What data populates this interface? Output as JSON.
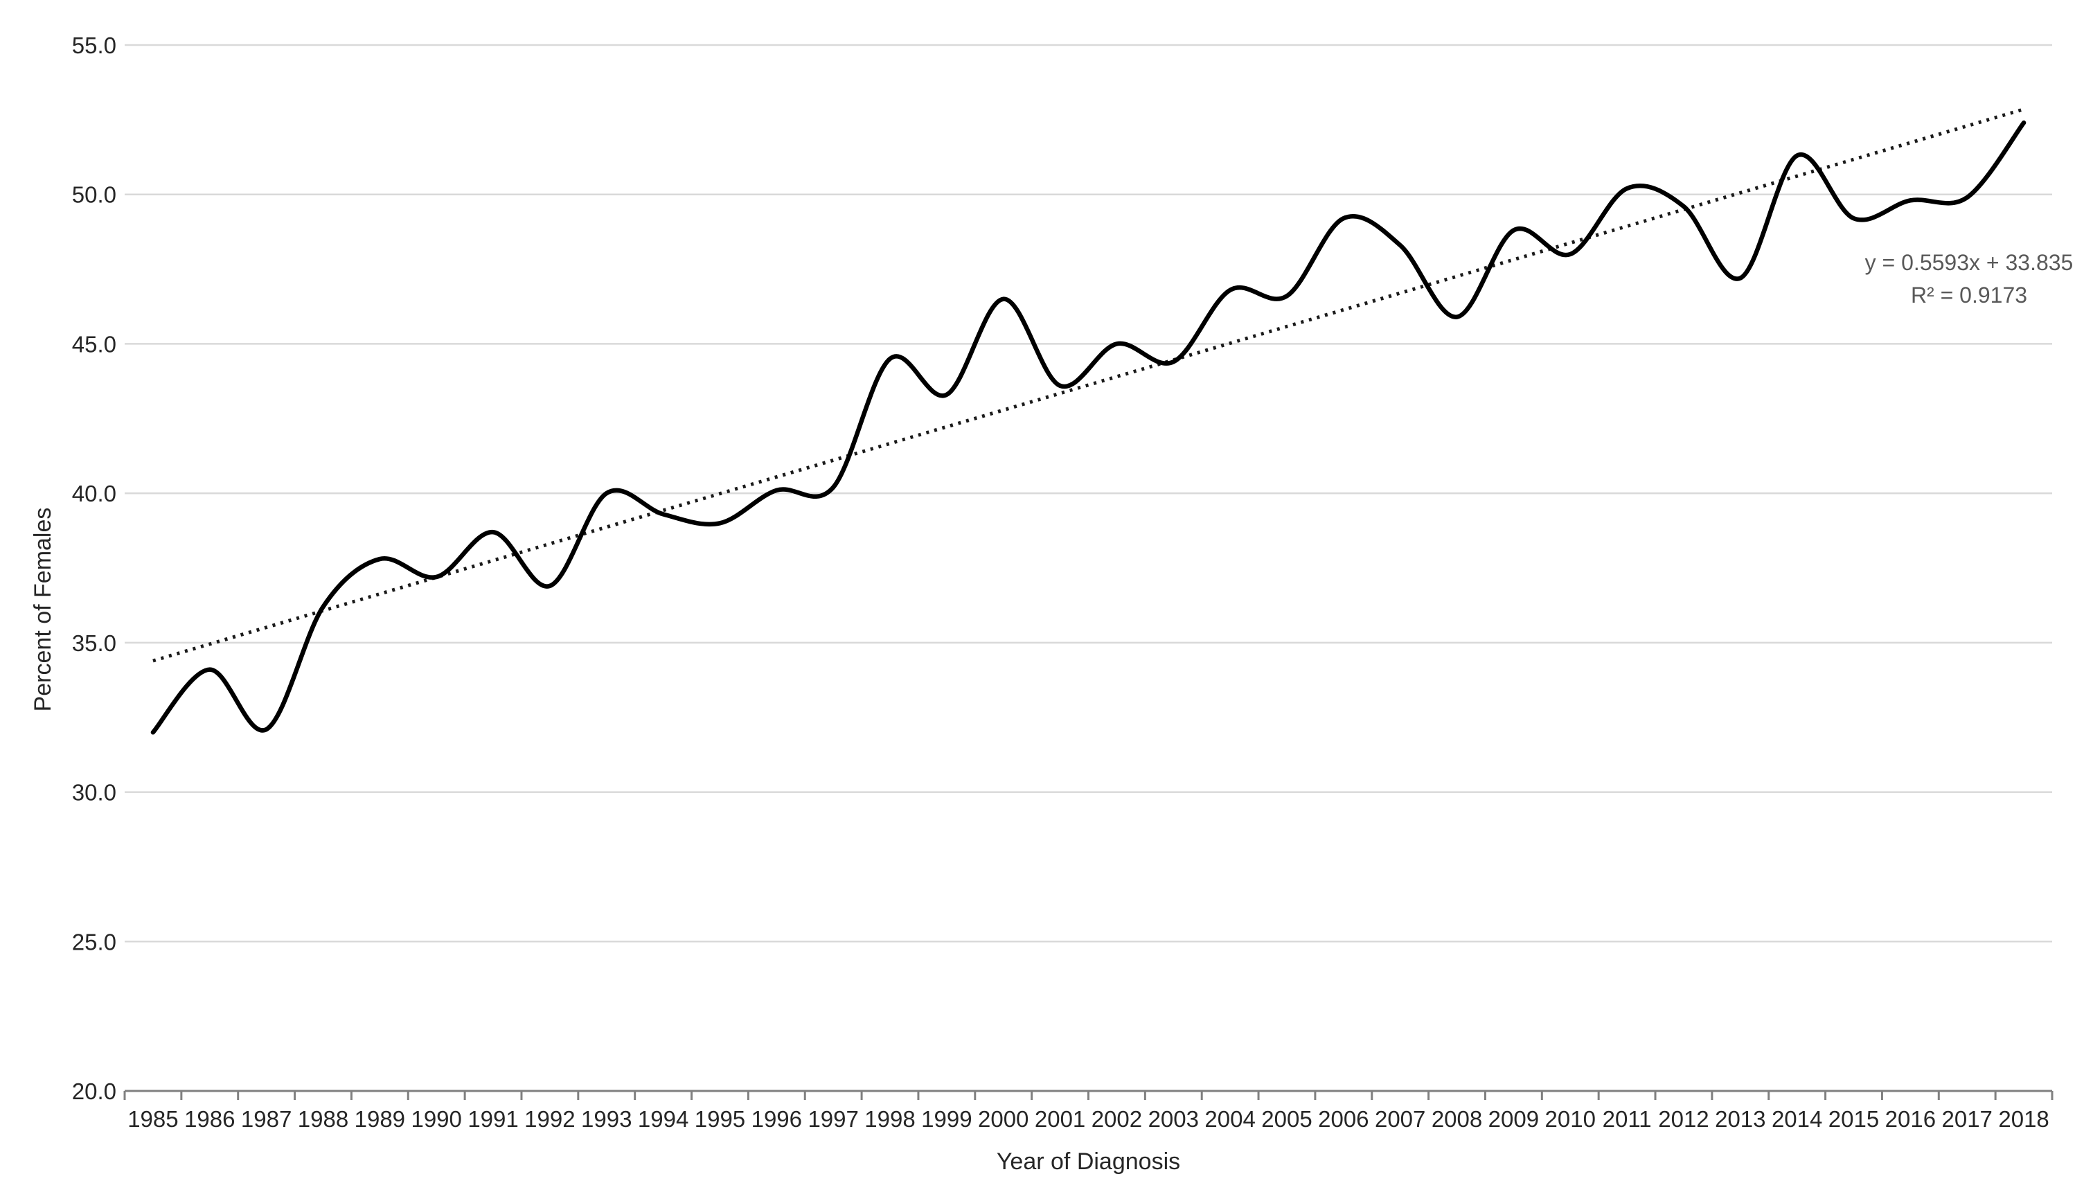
{
  "chart_data": {
    "type": "line",
    "title": "",
    "xlabel": "Year of Diagnosis",
    "ylabel": "Percent of Females",
    "categories": [
      "1985",
      "1986",
      "1987",
      "1988",
      "1989",
      "1990",
      "1991",
      "1992",
      "1993",
      "1994",
      "1995",
      "1996",
      "1997",
      "1998",
      "1999",
      "2000",
      "2001",
      "2002",
      "2003",
      "2004",
      "2005",
      "2006",
      "2007",
      "2008",
      "2009",
      "2010",
      "2011",
      "2012",
      "2013",
      "2014",
      "2015",
      "2016",
      "2017",
      "2018"
    ],
    "series": [
      {
        "name": "Percent of Females",
        "values": [
          32.0,
          34.1,
          32.1,
          36.2,
          37.8,
          37.2,
          38.7,
          36.9,
          40.0,
          39.3,
          39.0,
          40.1,
          40.2,
          44.5,
          43.3,
          46.5,
          43.6,
          45.0,
          44.4,
          46.8,
          46.6,
          49.2,
          48.3,
          45.9,
          48.8,
          48.0,
          50.2,
          49.6,
          47.2,
          51.3,
          49.2,
          49.8,
          49.9,
          52.4
        ],
        "style": "smooth-solid"
      }
    ],
    "trendline": {
      "equation": "y = 0.5593x + 33.835",
      "r_squared": "R² = 0.9173",
      "slope": 0.5593,
      "intercept": 33.835,
      "style": "dotted"
    },
    "y_axis": {
      "min": 20,
      "max": 55,
      "step": 5,
      "tick_labels": [
        "20.0",
        "25.0",
        "30.0",
        "35.0",
        "40.0",
        "45.0",
        "50.0",
        "55.0"
      ]
    },
    "x_axis": {
      "tick_count": 35,
      "labels_between_ticks": true
    },
    "grid": true,
    "legend": "none",
    "colors": {
      "line": "#000000",
      "trendline": "#1a1a1a",
      "gridline": "#d9d9d9",
      "axis_line": "#808080",
      "tick_label": "#262626",
      "title_text": "#262626",
      "equation_text": "#595959",
      "background": "#ffffff"
    }
  }
}
